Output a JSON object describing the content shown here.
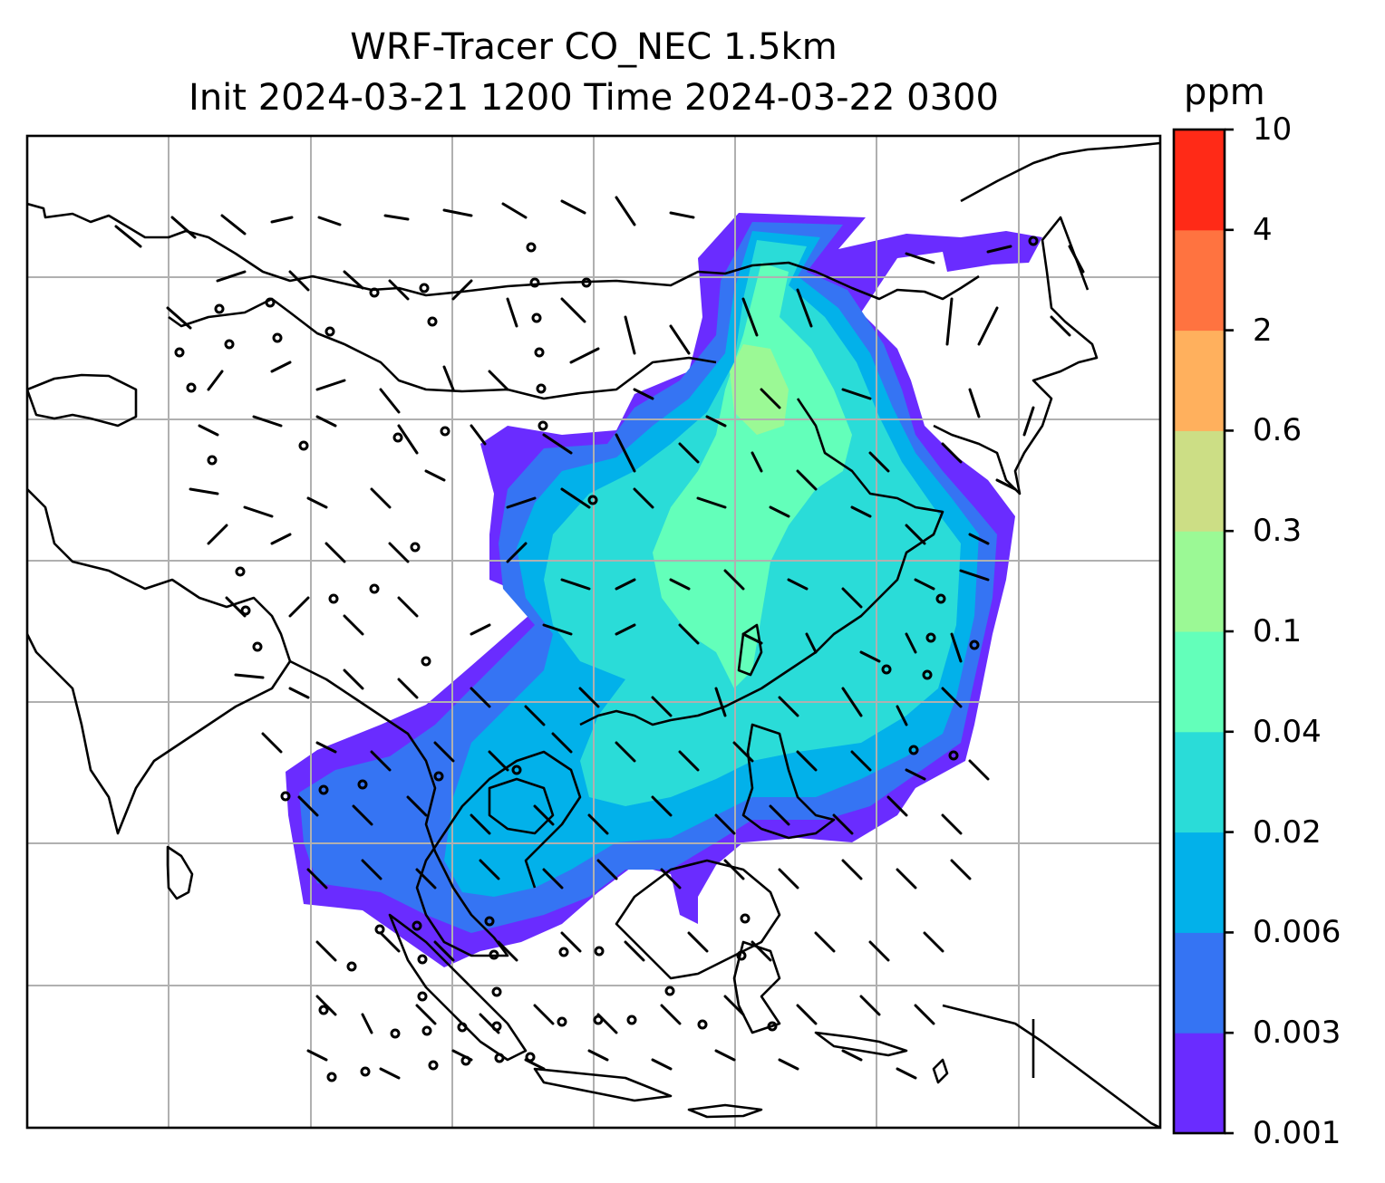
{
  "title": {
    "line1": "WRF-Tracer CO_NEC 1.5km",
    "line2": "Init 2024-03-21 1200 Time 2024-03-22 0300"
  },
  "colorbar": {
    "unit": "ppm",
    "levels": [
      "0.001",
      "0.003",
      "0.006",
      "0.02",
      "0.04",
      "0.1",
      "0.3",
      "0.6",
      "2",
      "4",
      "10"
    ],
    "colors": [
      "#6a2cff",
      "#3574f3",
      "#02b1ea",
      "#2adcd8",
      "#63ffba",
      "#9bf995",
      "#ccde85",
      "#ffb05d",
      "#ff7340",
      "#ff2a17"
    ]
  },
  "map": {
    "grid": true,
    "coastline_color": "#000000",
    "gridline_color": "#b0b0b0"
  }
}
